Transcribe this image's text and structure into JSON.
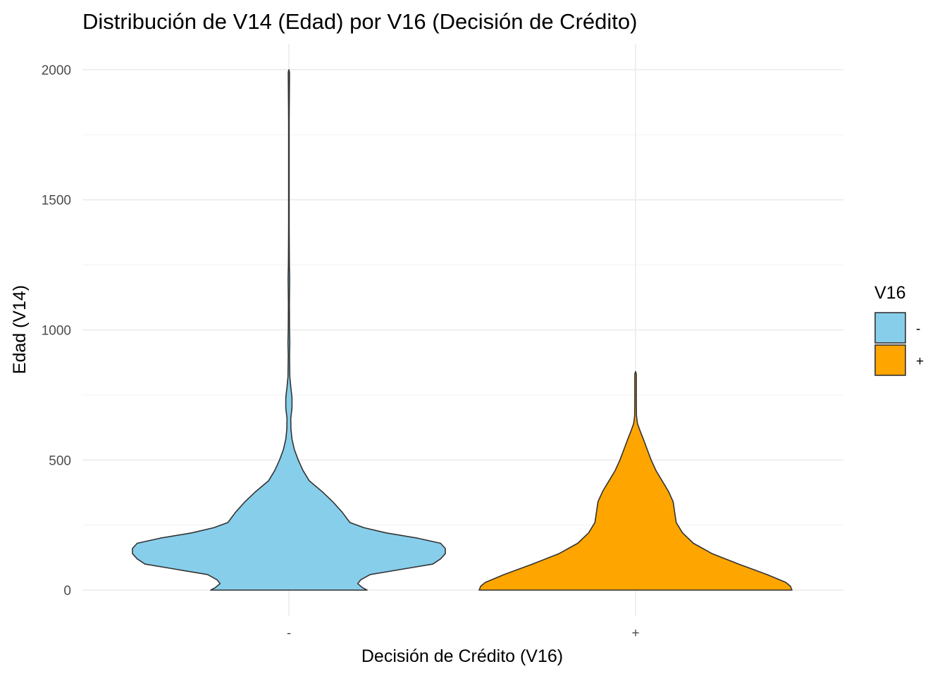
{
  "chart_data": {
    "type": "violin",
    "title": "Distribución de V14 (Edad) por V16 (Decisión de Crédito)",
    "xlabel": "Decisión de Crédito (V16)",
    "ylabel": "Edad (V14)",
    "categories": [
      "-",
      "+"
    ],
    "ylim": [
      -100,
      2100
    ],
    "yticks": [
      0,
      500,
      1000,
      1500,
      2000
    ],
    "grid": true,
    "legend": {
      "title": "V16",
      "position": "right",
      "entries": [
        {
          "label": "-",
          "color": "#87CEEB"
        },
        {
          "label": "+",
          "color": "#FFA500"
        }
      ]
    },
    "series": [
      {
        "name": "-",
        "color": "#87CEEB",
        "density_profile": [
          [
            0,
            0.5
          ],
          [
            10,
            0.47
          ],
          [
            25,
            0.44
          ],
          [
            40,
            0.46
          ],
          [
            60,
            0.52
          ],
          [
            80,
            0.72
          ],
          [
            100,
            0.92
          ],
          [
            120,
            0.97
          ],
          [
            140,
            1.0
          ],
          [
            160,
            1.0
          ],
          [
            180,
            0.97
          ],
          [
            200,
            0.82
          ],
          [
            220,
            0.62
          ],
          [
            240,
            0.48
          ],
          [
            260,
            0.39
          ],
          [
            300,
            0.34
          ],
          [
            340,
            0.28
          ],
          [
            380,
            0.21
          ],
          [
            420,
            0.13
          ],
          [
            460,
            0.09
          ],
          [
            500,
            0.06
          ],
          [
            540,
            0.035
          ],
          [
            580,
            0.02
          ],
          [
            620,
            0.013
          ],
          [
            660,
            0.012
          ],
          [
            700,
            0.02
          ],
          [
            740,
            0.02
          ],
          [
            780,
            0.012
          ],
          [
            820,
            0.006
          ],
          [
            900,
            0.004
          ],
          [
            950,
            0.006
          ],
          [
            1000,
            0.004
          ],
          [
            1100,
            0.003
          ],
          [
            1200,
            0.005
          ],
          [
            1250,
            0.003
          ],
          [
            1400,
            0.002
          ],
          [
            1800,
            0.002
          ],
          [
            1990,
            0.004
          ],
          [
            2000,
            0.0
          ]
        ]
      },
      {
        "name": "+",
        "color": "#FFA500",
        "density_profile": [
          [
            0,
            1.0
          ],
          [
            15,
            0.99
          ],
          [
            30,
            0.96
          ],
          [
            60,
            0.84
          ],
          [
            100,
            0.66
          ],
          [
            140,
            0.49
          ],
          [
            180,
            0.37
          ],
          [
            220,
            0.3
          ],
          [
            260,
            0.26
          ],
          [
            300,
            0.25
          ],
          [
            340,
            0.24
          ],
          [
            380,
            0.21
          ],
          [
            420,
            0.17
          ],
          [
            460,
            0.13
          ],
          [
            500,
            0.1
          ],
          [
            540,
            0.075
          ],
          [
            580,
            0.05
          ],
          [
            610,
            0.03
          ],
          [
            640,
            0.012
          ],
          [
            670,
            0.006
          ],
          [
            720,
            0.005
          ],
          [
            780,
            0.005
          ],
          [
            830,
            0.005
          ],
          [
            840,
            0.0
          ]
        ]
      }
    ]
  }
}
